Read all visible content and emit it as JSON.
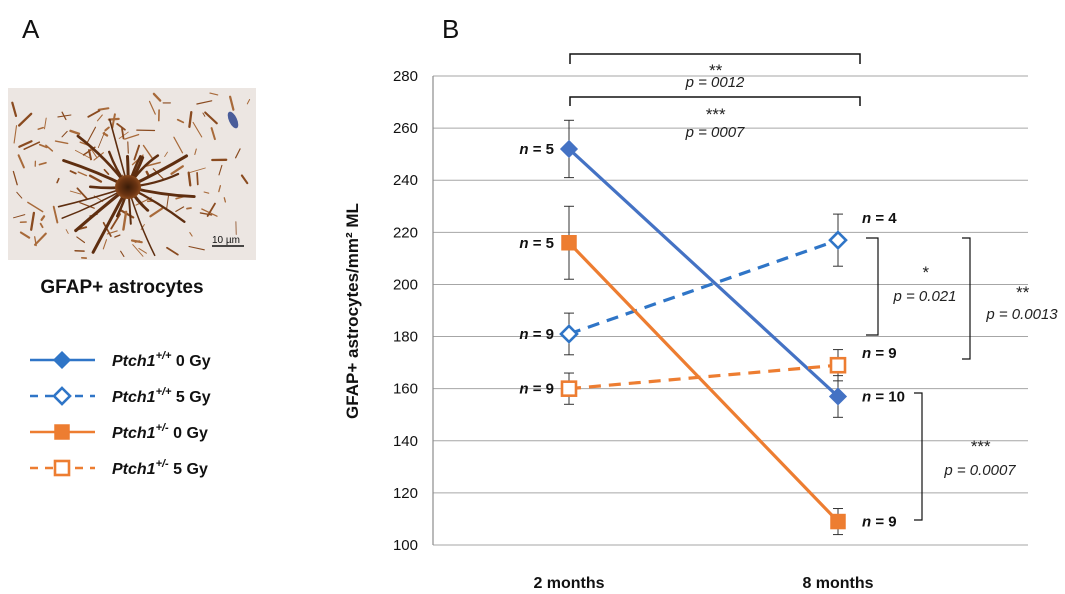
{
  "panel_a": {
    "letter": "A",
    "image_caption": "GFAP+ astrocytes",
    "scale_bar": "10 µm",
    "legend": [
      {
        "name": "Ptch1",
        "sup": "+/+",
        "dose": " 0 Gy",
        "color": "#2F75C7",
        "dashed": false,
        "marker": "diamond",
        "filled": true
      },
      {
        "name": "Ptch1",
        "sup": "+/+",
        "dose": " 5 Gy",
        "color": "#2F75C7",
        "dashed": true,
        "marker": "diamond",
        "filled": false
      },
      {
        "name": "Ptch1",
        "sup": "+/-",
        "dose": " 0 Gy",
        "color": "#ED7D31",
        "dashed": false,
        "marker": "square",
        "filled": true
      },
      {
        "name": "Ptch1",
        "sup": "+/-",
        "dose": " 5 Gy",
        "color": "#ED7D31",
        "dashed": true,
        "marker": "square",
        "filled": false
      }
    ]
  },
  "chart_data": {
    "panel": "B",
    "type": "line",
    "ylabel": "GFAP+ astrocytes/mm² ML",
    "categories": [
      "2 months",
      "8 months"
    ],
    "ylim": [
      100,
      280
    ],
    "yticks": [
      100,
      120,
      140,
      160,
      180,
      200,
      220,
      240,
      260,
      280
    ],
    "grid": true,
    "series": [
      {
        "label": "Ptch1+/+ 0 Gy",
        "values": [
          252,
          157
        ],
        "err": [
          11,
          8
        ],
        "n": [
          "n = 5",
          "n = 10"
        ],
        "color": "#4472C4",
        "dashed": false,
        "marker": "diamond",
        "filled": true
      },
      {
        "label": "Ptch1+/+ 5 Gy",
        "values": [
          181,
          217
        ],
        "err": [
          8,
          10
        ],
        "n": [
          "n = 9",
          "n = 4"
        ],
        "color": "#2F75C7",
        "dashed": true,
        "marker": "diamond",
        "filled": false
      },
      {
        "label": "Ptch1+/- 0 Gy",
        "values": [
          216,
          109
        ],
        "err": [
          14,
          5
        ],
        "n": [
          "n = 5",
          "n = 9"
        ],
        "color": "#ED7D31",
        "dashed": false,
        "marker": "square",
        "filled": true
      },
      {
        "label": "Ptch1+/- 5 Gy",
        "values": [
          160,
          169
        ],
        "err": [
          6,
          6
        ],
        "n": [
          "n = 9",
          "n = 9"
        ],
        "color": "#ED7D31",
        "dashed": true,
        "marker": "square",
        "filled": false
      }
    ],
    "annotations": [
      {
        "stars": "**",
        "p": "p = 0012"
      },
      {
        "stars": "***",
        "p": "p = 0007"
      },
      {
        "stars": "*",
        "p": "p = 0.021"
      },
      {
        "stars": "**",
        "p": "p = 0.0013"
      },
      {
        "stars": "***",
        "p": "p = 0.0007"
      }
    ]
  }
}
